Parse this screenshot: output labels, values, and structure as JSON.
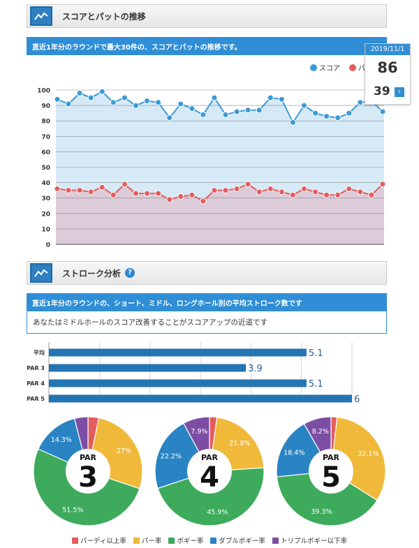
{
  "section1": {
    "title": "スコアとパットの推移",
    "banner": "直近1年分のラウンドで最大30件の、スコアとパットの推移です。",
    "legend": [
      {
        "label": "スコア",
        "color": "#3a9ad9"
      },
      {
        "label": "パ",
        "color": "#e45d5d"
      }
    ],
    "tooltip": {
      "date": "2019/11/1",
      "score": "86",
      "putt": "39",
      "nav_icon": "chevron-right-icon"
    }
  },
  "chart_data": [
    {
      "type": "line",
      "ylim": [
        0,
        100
      ],
      "yticks": [
        "0",
        "10",
        "20",
        "30",
        "40",
        "50",
        "60",
        "70",
        "80",
        "90",
        "100"
      ],
      "x": [
        1,
        2,
        3,
        4,
        5,
        6,
        7,
        8,
        9,
        10,
        11,
        12,
        13,
        14,
        15,
        16,
        17,
        18,
        19,
        20,
        21,
        22,
        23,
        24,
        25,
        26,
        27,
        28,
        29,
        30
      ],
      "series": [
        {
          "name": "スコア",
          "color": "#3a9ad9",
          "fill": "#d6e9f7",
          "values": [
            94,
            91,
            98,
            95,
            99,
            92,
            95,
            90,
            93,
            92,
            82,
            91,
            88,
            84,
            95,
            84,
            86,
            87,
            87,
            95,
            94,
            79,
            90,
            85,
            83,
            82,
            85,
            92,
            93,
            86
          ]
        },
        {
          "name": "パ",
          "color": "#e45d5d",
          "fill": "#dccbd9",
          "values": [
            36,
            35,
            35,
            34,
            37,
            32,
            39,
            33,
            33,
            33,
            29,
            31,
            32,
            28,
            35,
            35,
            36,
            39,
            34,
            36,
            34,
            32,
            36,
            34,
            32,
            32,
            36,
            34,
            32,
            39
          ]
        }
      ],
      "grid": true,
      "legend_position": "top-right"
    },
    {
      "type": "bar",
      "orientation": "horizontal",
      "categories": [
        "平均",
        "PAR 3",
        "PAR 4",
        "PAR 5"
      ],
      "values": [
        5.1,
        3.9,
        5.1,
        6
      ],
      "value_labels": [
        "5.1",
        "3.9",
        "5.1",
        "6"
      ],
      "xlim": [
        0,
        6
      ],
      "color": "#2475b3"
    },
    {
      "type": "pie",
      "label_large": "3",
      "label_small": "PAR",
      "slices": [
        {
          "name": "パーディ以上率",
          "value": 3.2,
          "label": ""
        },
        {
          "name": "パー率",
          "value": 27,
          "label": "27%"
        },
        {
          "name": "ボギー率",
          "value": 51.5,
          "label": "51.5%"
        },
        {
          "name": "ダブルボギー率",
          "value": 14.3,
          "label": "14.3%"
        },
        {
          "name": "トリプルボギー以下率",
          "value": 4.0,
          "label": ""
        }
      ]
    },
    {
      "type": "pie",
      "label_large": "4",
      "label_small": "PAR",
      "slices": [
        {
          "name": "パーディ以上率",
          "value": 2.2,
          "label": ""
        },
        {
          "name": "パー率",
          "value": 21.8,
          "label": "21.8%"
        },
        {
          "name": "ボギー率",
          "value": 45.9,
          "label": "45.9%"
        },
        {
          "name": "ダブルボギー率",
          "value": 22.2,
          "label": "22.2%"
        },
        {
          "name": "トリプルボギー以下率",
          "value": 7.9,
          "label": "7.9%"
        }
      ]
    },
    {
      "type": "pie",
      "label_large": "5",
      "label_small": "PAR",
      "slices": [
        {
          "name": "パーディ以上率",
          "value": 1.8,
          "label": ""
        },
        {
          "name": "パー率",
          "value": 32.1,
          "label": "32.1%"
        },
        {
          "name": "ボギー率",
          "value": 39.3,
          "label": "39.3%"
        },
        {
          "name": "ダブルボギー率",
          "value": 18.4,
          "label": "18.4%"
        },
        {
          "name": "トリプルボギー以下率",
          "value": 8.2,
          "label": "8.2%"
        }
      ]
    }
  ],
  "section2": {
    "title": "ストローク分析",
    "help_icon": "?",
    "banner": "直近1年分のラウンドの、ショート、ミドル、ロングホール別の平均ストローク数です",
    "note": "あなたはミドルホールのスコア改善することがスコアアップの近道です"
  },
  "pie_legend": [
    {
      "label": "パーディ以上率",
      "color": "#e45d5d"
    },
    {
      "label": "パー率",
      "color": "#f0b93a"
    },
    {
      "label": "ボギー率",
      "color": "#3daa5c"
    },
    {
      "label": "ダブルボギー率",
      "color": "#2a84c4"
    },
    {
      "label": "トリプルボギー以下率",
      "color": "#7c4ea3"
    }
  ],
  "colors": {
    "accent": "#2f8ed6",
    "bar": "#2475b3"
  }
}
